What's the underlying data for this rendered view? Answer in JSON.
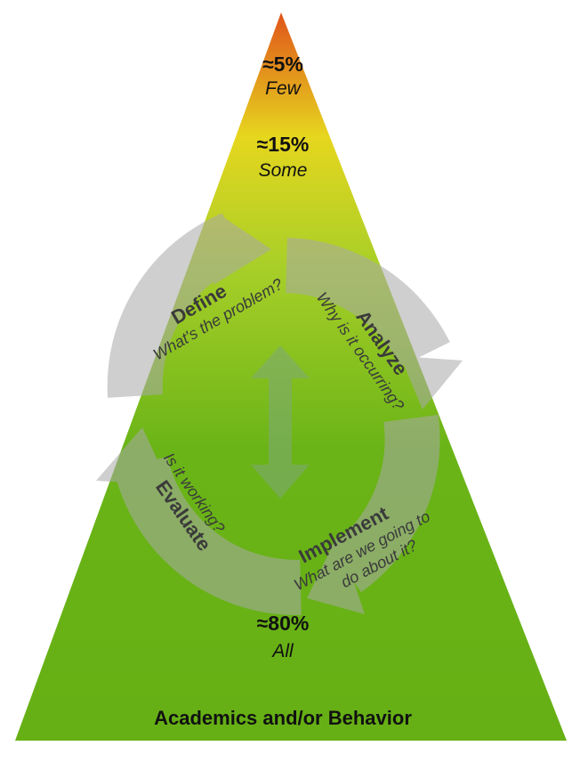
{
  "colors": {
    "apex": "#e0541a",
    "upper": "#e6d61e",
    "middle": "#a8cf28",
    "base": "#6ab417",
    "cycle_arrow": "#a9a9a9",
    "text_dark": "#111111",
    "text_step": "#3a3a3a"
  },
  "tiers": [
    {
      "percent": "≈5%",
      "label": "Few"
    },
    {
      "percent": "≈15%",
      "label": "Some"
    },
    {
      "percent": "≈80%",
      "label": "All"
    }
  ],
  "cycle": {
    "steps": [
      {
        "title": "Define",
        "question": "What's the problem?"
      },
      {
        "title": "Analyze",
        "question": "Why is it occurring?"
      },
      {
        "title": "Implement",
        "question_line1": "What are we going to",
        "question_line2": "do about it?"
      },
      {
        "title": "Evaluate",
        "question": "Is it working?"
      }
    ],
    "icons": [
      "circular-arrow-icon",
      "double-headed-arrow-icon"
    ]
  },
  "footer": "Academics and/or Behavior"
}
